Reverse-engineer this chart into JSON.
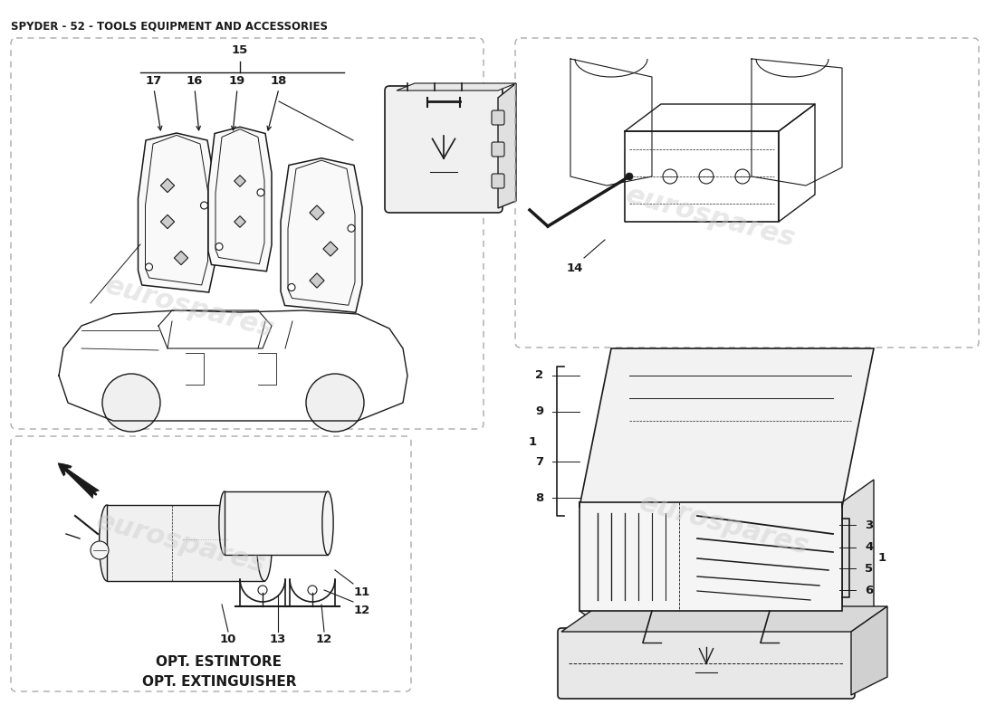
{
  "title": "SPYDER - 52 - TOOLS EQUIPMENT AND ACCESSORIES",
  "title_fontsize": 8.5,
  "title_fontweight": "bold",
  "bg_color": "#ffffff",
  "line_color": "#1a1a1a",
  "wm_color": "#cccccc",
  "wm_alpha": 0.45,
  "label_fontsize": 9.5,
  "lw": 1.0,
  "opt_text1": "OPT. ESTINTORE",
  "opt_text2": "OPT. EXTINGUISHER"
}
